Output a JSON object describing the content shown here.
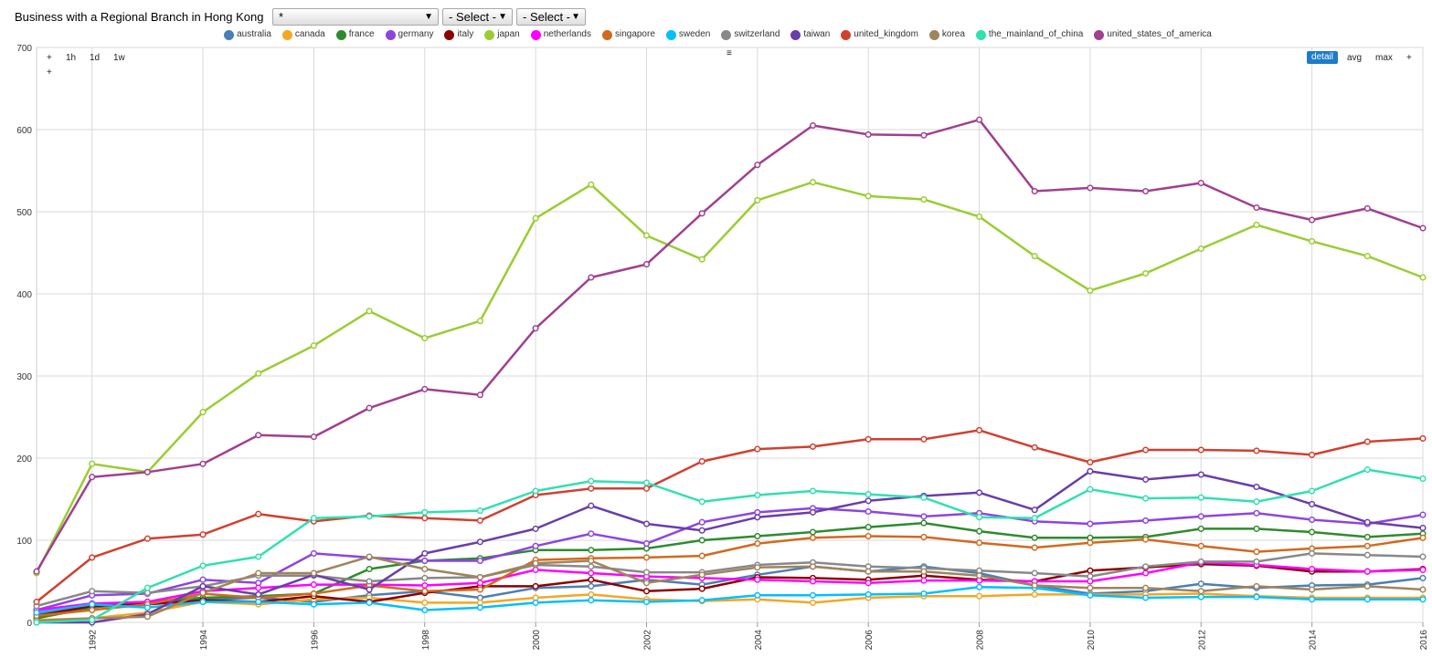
{
  "toolbar": {
    "title": "Business with a Regional Branch in Hong Kong",
    "select_1": "*",
    "select_2": "- Select -",
    "select_3": "- Select -"
  },
  "controls": {
    "zoom_in": "+",
    "zoom_1h": "1h",
    "zoom_1d": "1d",
    "zoom_1w": "1w",
    "zoom_in_2": "+",
    "menu": "≡",
    "mode_detail": "detail",
    "mode_avg": "avg",
    "mode_max": "max",
    "mode_plus": "+"
  },
  "chart_data": {
    "type": "line",
    "x": [
      1991,
      1992,
      1993,
      1994,
      1995,
      1996,
      1997,
      1998,
      1999,
      2000,
      2001,
      2002,
      2003,
      2004,
      2005,
      2006,
      2007,
      2008,
      2009,
      2010,
      2011,
      2012,
      2013,
      2014,
      2015,
      2016
    ],
    "x_ticks": [
      "1992",
      "1994",
      "1996",
      "1998",
      "2000",
      "2002",
      "2004",
      "2006",
      "2008",
      "2010",
      "2012",
      "2014",
      "2016"
    ],
    "y_ticks": [
      "0",
      "100",
      "200",
      "300",
      "400",
      "500",
      "600",
      "700"
    ],
    "ylim": [
      0,
      700
    ],
    "grid": true,
    "legend_position": "top",
    "series": [
      {
        "name": "australia",
        "color": "#4a7fb5",
        "values": [
          10,
          20,
          25,
          28,
          30,
          25,
          33,
          38,
          30,
          42,
          44,
          52,
          46,
          58,
          68,
          62,
          68,
          60,
          45,
          35,
          38,
          47,
          42,
          45,
          46,
          54
        ]
      },
      {
        "name": "canada",
        "color": "#f5a623",
        "values": [
          3,
          5,
          12,
          25,
          22,
          28,
          30,
          24,
          24,
          30,
          34,
          28,
          26,
          28,
          24,
          30,
          32,
          32,
          34,
          34,
          34,
          35,
          32,
          30,
          30,
          30
        ]
      },
      {
        "name": "france",
        "color": "#2e8b2e",
        "values": [
          5,
          18,
          25,
          30,
          32,
          35,
          65,
          75,
          78,
          88,
          88,
          90,
          100,
          105,
          110,
          116,
          121,
          111,
          103,
          103,
          104,
          114,
          114,
          110,
          104,
          108
        ]
      },
      {
        "name": "germany",
        "color": "#8e44e0",
        "values": [
          15,
          33,
          35,
          52,
          48,
          84,
          79,
          75,
          75,
          93,
          108,
          96,
          122,
          134,
          139,
          135,
          129,
          133,
          123,
          120,
          124,
          129,
          133,
          125,
          120,
          131
        ]
      },
      {
        "name": "italy",
        "color": "#8b0000",
        "values": [
          8,
          20,
          22,
          27,
          25,
          32,
          25,
          36,
          44,
          44,
          52,
          38,
          41,
          55,
          54,
          52,
          57,
          52,
          50,
          63,
          67,
          71,
          69,
          62,
          62,
          65
        ]
      },
      {
        "name": "japan",
        "color": "#9acd32",
        "values": [
          60,
          193,
          183,
          256,
          303,
          337,
          379,
          346,
          367,
          492,
          533,
          471,
          442,
          514,
          536,
          519,
          515,
          494,
          446,
          404,
          425,
          455,
          484,
          464,
          446,
          420
        ]
      },
      {
        "name": "netherlands",
        "color": "#ff00ff",
        "values": [
          15,
          23,
          25,
          38,
          42,
          46,
          46,
          45,
          48,
          64,
          60,
          56,
          54,
          52,
          50,
          48,
          51,
          51,
          50,
          50,
          60,
          73,
          70,
          65,
          62,
          64
        ]
      },
      {
        "name": "singapore",
        "color": "#d2691e",
        "values": [
          8,
          15,
          22,
          35,
          30,
          35,
          45,
          38,
          40,
          76,
          78,
          79,
          81,
          96,
          103,
          105,
          104,
          97,
          91,
          97,
          101,
          93,
          86,
          90,
          93,
          103
        ]
      },
      {
        "name": "sweden",
        "color": "#00bfff",
        "values": [
          12,
          22,
          18,
          25,
          25,
          22,
          24,
          15,
          18,
          24,
          27,
          25,
          27,
          33,
          33,
          34,
          35,
          43,
          42,
          33,
          30,
          31,
          31,
          28,
          28,
          28
        ]
      },
      {
        "name": "switzerland",
        "color": "#888888",
        "values": [
          20,
          38,
          36,
          44,
          57,
          57,
          50,
          54,
          55,
          70,
          68,
          61,
          61,
          70,
          73,
          68,
          66,
          63,
          60,
          56,
          68,
          74,
          74,
          84,
          82,
          80
        ]
      },
      {
        "name": "taiwan",
        "color": "#6a3daa",
        "values": [
          0,
          0,
          10,
          44,
          34,
          58,
          40,
          84,
          98,
          114,
          142,
          120,
          112,
          128,
          134,
          148,
          154,
          158,
          137,
          184,
          174,
          180,
          165,
          144,
          122,
          115
        ]
      },
      {
        "name": "united_kingdom",
        "color": "#d04030",
        "values": [
          25,
          79,
          102,
          107,
          132,
          123,
          130,
          127,
          124,
          155,
          163,
          163,
          196,
          211,
          214,
          223,
          223,
          234,
          213,
          195,
          210,
          210,
          209,
          204,
          220,
          224
        ]
      },
      {
        "name": "korea",
        "color": "#a0845c",
        "values": [
          2,
          5,
          7,
          36,
          60,
          60,
          80,
          65,
          55,
          72,
          75,
          48,
          58,
          67,
          68,
          62,
          62,
          57,
          45,
          42,
          42,
          38,
          44,
          40,
          44,
          40
        ]
      },
      {
        "name": "the_mainland_of_china",
        "color": "#30e0b0",
        "values": [
          0,
          3,
          42,
          69,
          80,
          127,
          129,
          134,
          136,
          160,
          172,
          170,
          147,
          155,
          160,
          156,
          152,
          128,
          127,
          162,
          151,
          152,
          147,
          160,
          186,
          175
        ]
      },
      {
        "name": "united_states_of_america",
        "color": "#a0408f",
        "values": [
          62,
          177,
          183,
          193,
          228,
          226,
          261,
          284,
          277,
          358,
          420,
          436,
          498,
          557,
          605,
          594,
          593,
          612,
          525,
          529,
          525,
          535,
          505,
          490,
          504,
          480
        ]
      }
    ]
  }
}
